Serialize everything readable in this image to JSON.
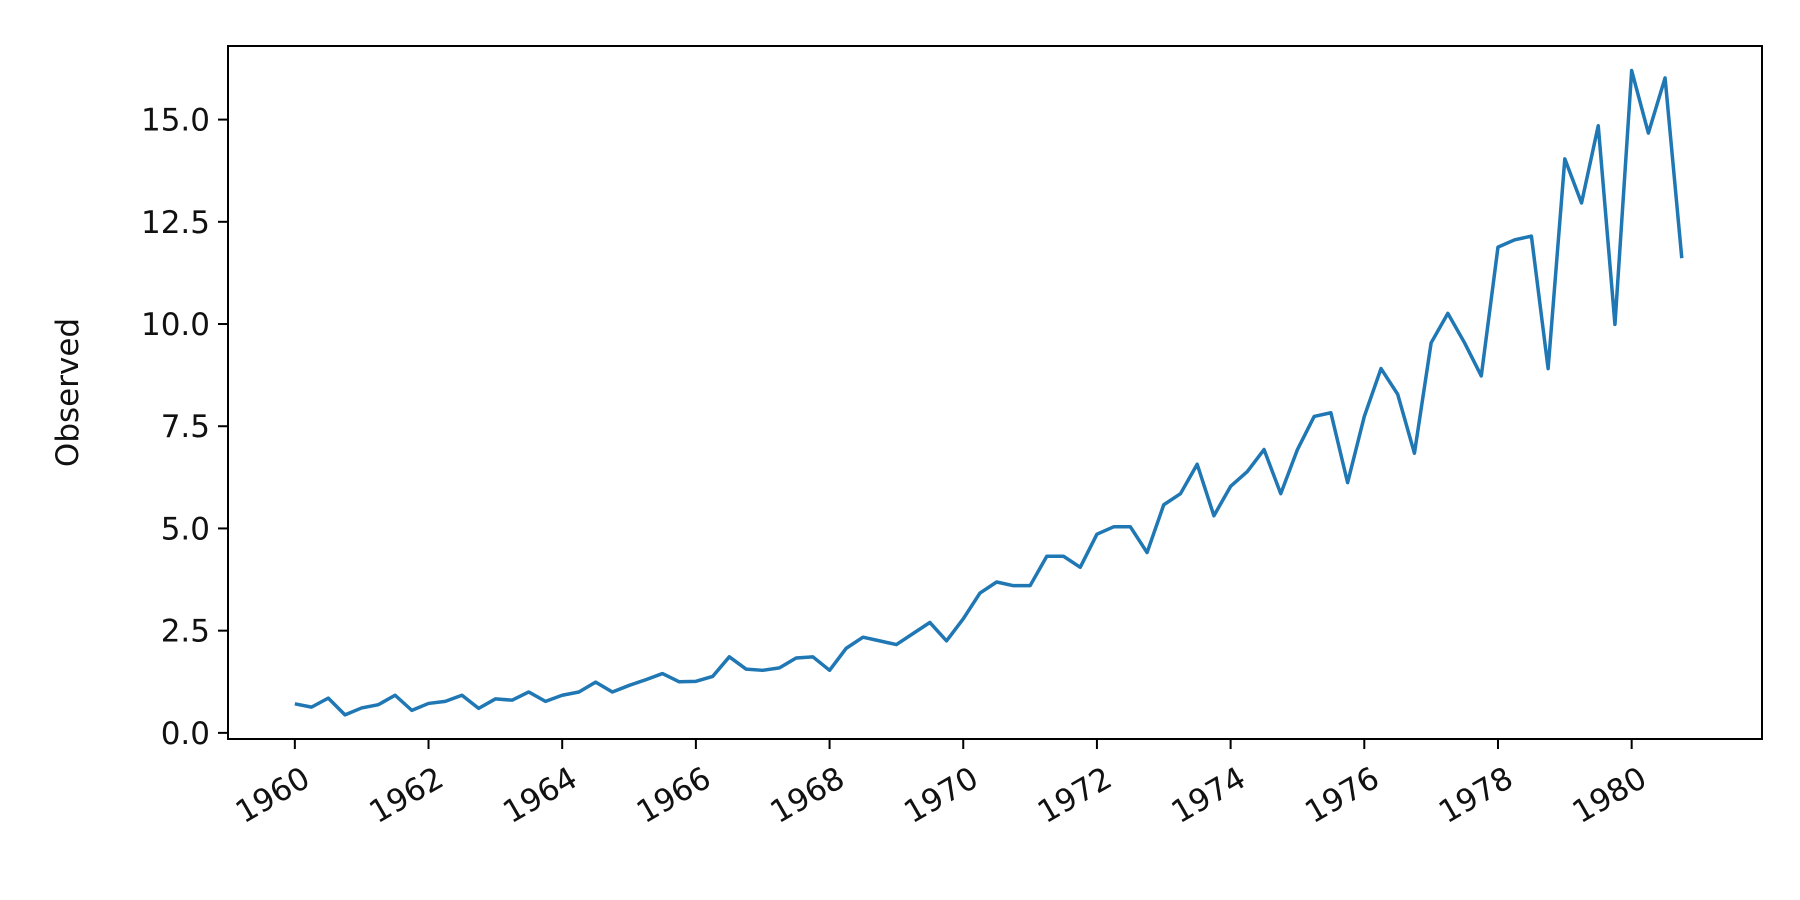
{
  "chart_data": {
    "type": "line",
    "title": "",
    "xlabel": "",
    "ylabel": "Observed",
    "x_ticks": [
      "1960",
      "1962",
      "1964",
      "1966",
      "1968",
      "1970",
      "1972",
      "1974",
      "1976",
      "1978",
      "1980"
    ],
    "y_ticks": [
      "0.0",
      "2.5",
      "5.0",
      "7.5",
      "10.0",
      "12.5",
      "15.0"
    ],
    "xlim": [
      1959.0,
      1981.95
    ],
    "ylim": [
      -0.15,
      16.8
    ],
    "grid": false,
    "line_color": "#1f77b4",
    "series": [
      {
        "x": [
          1960.0,
          1960.25,
          1960.5,
          1960.75,
          1961.0,
          1961.25,
          1961.5,
          1961.75,
          1962.0,
          1962.25,
          1962.5,
          1962.75,
          1963.0,
          1963.25,
          1963.5,
          1963.75,
          1964.0,
          1964.25,
          1964.5,
          1964.75,
          1965.0,
          1965.25,
          1965.5,
          1965.75,
          1966.0,
          1966.25,
          1966.5,
          1966.75,
          1967.0,
          1967.25,
          1967.5,
          1967.75,
          1968.0,
          1968.25,
          1968.5,
          1968.75,
          1969.0,
          1969.25,
          1969.5,
          1969.75,
          1970.0,
          1970.25,
          1970.5,
          1970.75,
          1971.0,
          1971.25,
          1971.5,
          1971.75,
          1972.0,
          1972.25,
          1972.5,
          1972.75,
          1973.0,
          1973.25,
          1973.5,
          1973.75,
          1974.0,
          1974.25,
          1974.5,
          1974.75,
          1975.0,
          1975.25,
          1975.5,
          1975.75,
          1976.0,
          1976.25,
          1976.5,
          1976.75,
          1977.0,
          1977.25,
          1977.5,
          1977.75,
          1978.0,
          1978.25,
          1978.5,
          1978.75,
          1979.0,
          1979.25,
          1979.5,
          1979.75,
          1980.0,
          1980.25,
          1980.5,
          1980.75
        ],
        "values": [
          0.71,
          0.63,
          0.85,
          0.44,
          0.61,
          0.69,
          0.92,
          0.55,
          0.72,
          0.77,
          0.92,
          0.6,
          0.83,
          0.8,
          1.0,
          0.77,
          0.92,
          1.0,
          1.24,
          1.0,
          1.16,
          1.3,
          1.45,
          1.25,
          1.26,
          1.38,
          1.86,
          1.56,
          1.53,
          1.59,
          1.83,
          1.86,
          1.53,
          2.07,
          2.34,
          2.25,
          2.16,
          2.43,
          2.7,
          2.25,
          2.79,
          3.42,
          3.69,
          3.6,
          3.6,
          4.32,
          4.32,
          4.05,
          4.86,
          5.04,
          5.04,
          4.41,
          5.58,
          5.85,
          6.57,
          5.31,
          6.03,
          6.39,
          6.93,
          5.85,
          6.93,
          7.74,
          7.83,
          6.12,
          7.74,
          8.91,
          8.28,
          6.84,
          9.54,
          10.26,
          9.54,
          8.73,
          11.88,
          12.06,
          12.15,
          8.91,
          14.04,
          12.96,
          14.85,
          9.99,
          16.2,
          14.67,
          16.02,
          11.61
        ]
      }
    ]
  }
}
